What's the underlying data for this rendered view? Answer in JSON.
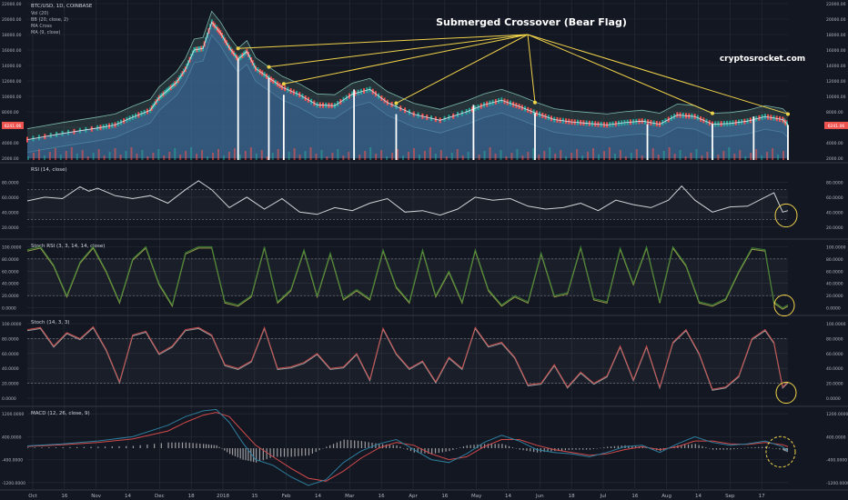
{
  "colors": {
    "background": "#131722",
    "grid": "#2a2e39",
    "separator": "#363a45",
    "price_area": "#3f6d99",
    "bull": "#26a69a",
    "bear": "#ef5350",
    "bb_band": "#7ab7a8",
    "annotation": "#f0d24a",
    "rsi_line": "#cfd2d6",
    "stoch_rsi_k": "#3d7f34",
    "stoch_rsi_d": "#9aa04a",
    "stoch_k": "#c14a4a",
    "stoch_d": "#9e9ea0",
    "macd_line": "#2d7f9e",
    "signal_line": "#d24a4a",
    "hist": "#9e9ea0",
    "price_badge": "#ef5350",
    "watermark": "#ffffff"
  },
  "annotation": {
    "title": "Submerged Crossover (Bear Flag)",
    "watermark": "cryptosrocket.com"
  },
  "chart_data": [
    {
      "type": "line",
      "title": "BTC/USD, 1D, COINBASE",
      "indicators": [
        "Vol (20)",
        "BB (20, close, 2)",
        "MA Cross",
        "MA (9, close)"
      ],
      "y_ticks": [
        "22000.00",
        "20000.00",
        "18000.00",
        "16000.00",
        "14000.00",
        "12000.00",
        "10000.00",
        "8000.00",
        "6000.00",
        "4000.00",
        "2000.00"
      ],
      "ylim": [
        2000,
        22000
      ],
      "last_price_label": "6241.06",
      "series": [
        {
          "x": [
            0,
            40,
            80,
            100,
            120,
            140,
            150,
            160,
            170,
            180,
            190,
            200,
            210,
            220,
            230,
            240,
            250,
            260,
            275,
            290,
            310,
            330,
            350,
            370,
            390,
            410,
            440,
            470,
            500,
            520,
            540,
            560,
            580,
            600,
            620,
            640,
            660,
            680,
            700,
            720,
            740,
            760,
            780,
            800,
            820,
            840,
            860,
            866
          ],
          "values": [
            4400,
            5200,
            5900,
            6300,
            7300,
            8200,
            9800,
            10800,
            11800,
            13500,
            16000,
            16200,
            19600,
            18200,
            16300,
            14800,
            15800,
            13600,
            12400,
            11200,
            10200,
            8900,
            8800,
            10300,
            10900,
            9200,
            7700,
            6900,
            8000,
            8900,
            9500,
            8700,
            7800,
            7000,
            6700,
            6500,
            6300,
            6600,
            6800,
            6400,
            7600,
            7400,
            6400,
            6500,
            6800,
            7400,
            7000,
            6300
          ]
        }
      ],
      "flag_markers_x": [
        240,
        275,
        292,
        372,
        420,
        508,
        578,
        706,
        780,
        827,
        866
      ],
      "arrow_targets_x": [
        240,
        275,
        292,
        420,
        578,
        780,
        866
      ]
    },
    {
      "type": "line",
      "title": "RSI (14, close)",
      "y_ticks": [
        "80.0000",
        "60.0000",
        "40.0000",
        "20.0000"
      ],
      "ylim": [
        10,
        100
      ],
      "bands": [
        70,
        30
      ],
      "series": [
        {
          "x": [
            0,
            20,
            40,
            60,
            70,
            80,
            100,
            120,
            140,
            160,
            180,
            195,
            210,
            230,
            250,
            270,
            290,
            310,
            330,
            350,
            370,
            390,
            410,
            430,
            450,
            470,
            490,
            510,
            530,
            550,
            570,
            590,
            610,
            630,
            650,
            670,
            690,
            710,
            730,
            745,
            760,
            780,
            800,
            820,
            840,
            850,
            860,
            866
          ],
          "values": [
            55,
            60,
            58,
            74,
            68,
            72,
            62,
            58,
            62,
            52,
            70,
            82,
            70,
            46,
            60,
            44,
            58,
            40,
            37,
            46,
            42,
            52,
            58,
            40,
            42,
            36,
            44,
            60,
            56,
            58,
            48,
            44,
            46,
            52,
            42,
            56,
            50,
            46,
            56,
            75,
            56,
            40,
            47,
            48,
            60,
            66,
            40,
            42
          ]
        }
      ]
    },
    {
      "type": "line",
      "title": "Stoch RSI (3, 3, 14, 14, close)",
      "y_ticks": [
        "100.0000",
        "80.0000",
        "60.0000",
        "40.0000",
        "20.0000",
        "0.0000"
      ],
      "ylim": [
        -5,
        105
      ],
      "bands": [
        80,
        20
      ],
      "series": [
        {
          "x": [
            0,
            15,
            30,
            45,
            60,
            75,
            90,
            105,
            120,
            135,
            150,
            165,
            180,
            195,
            210,
            225,
            240,
            255,
            270,
            285,
            300,
            315,
            330,
            345,
            360,
            375,
            390,
            405,
            420,
            435,
            450,
            465,
            480,
            495,
            510,
            525,
            540,
            555,
            570,
            585,
            600,
            615,
            630,
            645,
            660,
            675,
            690,
            705,
            720,
            735,
            750,
            765,
            780,
            795,
            810,
            825,
            840,
            850,
            860,
            866
          ],
          "values": [
            95,
            100,
            70,
            20,
            75,
            100,
            60,
            10,
            80,
            100,
            40,
            5,
            90,
            100,
            100,
            10,
            5,
            20,
            100,
            10,
            30,
            95,
            20,
            90,
            15,
            30,
            15,
            95,
            35,
            10,
            95,
            20,
            60,
            10,
            95,
            30,
            5,
            20,
            10,
            90,
            20,
            25,
            100,
            15,
            10,
            98,
            40,
            100,
            10,
            100,
            70,
            10,
            5,
            15,
            60,
            98,
            95,
            10,
            0,
            5
          ]
        }
      ]
    },
    {
      "type": "line",
      "title": "Stoch (14, 3, 3)",
      "y_ticks": [
        "100.0000",
        "80.0000",
        "60.0000",
        "40.0000",
        "20.0000",
        "0.0000"
      ],
      "ylim": [
        -5,
        105
      ],
      "bands": [
        80,
        20
      ],
      "series": [
        {
          "x": [
            0,
            15,
            30,
            45,
            60,
            75,
            90,
            105,
            120,
            135,
            150,
            165,
            180,
            195,
            210,
            225,
            240,
            255,
            270,
            285,
            300,
            315,
            330,
            345,
            360,
            375,
            390,
            405,
            420,
            435,
            450,
            465,
            480,
            495,
            510,
            525,
            540,
            555,
            570,
            585,
            600,
            615,
            630,
            645,
            660,
            675,
            690,
            705,
            720,
            735,
            750,
            765,
            780,
            795,
            810,
            825,
            840,
            850,
            860,
            866
          ],
          "values": [
            92,
            95,
            70,
            88,
            80,
            96,
            65,
            22,
            85,
            90,
            60,
            70,
            92,
            95,
            85,
            45,
            40,
            50,
            95,
            40,
            42,
            48,
            60,
            40,
            42,
            60,
            25,
            94,
            60,
            40,
            50,
            22,
            55,
            40,
            95,
            70,
            75,
            55,
            18,
            20,
            45,
            15,
            35,
            20,
            30,
            70,
            25,
            70,
            15,
            75,
            92,
            60,
            12,
            15,
            30,
            80,
            92,
            75,
            15,
            22
          ]
        }
      ]
    },
    {
      "type": "line",
      "title": "MACD (12, 26, close, 9)",
      "y_ticks": [
        "1200.0000",
        "400.0000",
        "-400.0000",
        "-1200.0000"
      ],
      "ylim": [
        -1300,
        1300
      ],
      "series": [
        {
          "x": [
            0,
            40,
            80,
            120,
            160,
            180,
            200,
            215,
            230,
            245,
            260,
            280,
            300,
            320,
            340,
            360,
            380,
            400,
            420,
            440,
            460,
            480,
            500,
            520,
            540,
            560,
            580,
            600,
            620,
            640,
            660,
            680,
            700,
            720,
            740,
            760,
            780,
            800,
            820,
            840,
            860,
            866
          ],
          "values": [
            80,
            150,
            250,
            400,
            800,
            1100,
            1300,
            1350,
            900,
            200,
            -400,
            -600,
            -1000,
            -1300,
            -1100,
            -500,
            -100,
            150,
            300,
            -50,
            -400,
            -500,
            -200,
            200,
            450,
            250,
            -50,
            -150,
            -200,
            -300,
            -150,
            50,
            100,
            -150,
            150,
            400,
            200,
            100,
            150,
            250,
            50,
            -100
          ]
        },
        {
          "x": [
            0,
            40,
            80,
            120,
            160,
            180,
            200,
            215,
            230,
            245,
            260,
            280,
            300,
            320,
            340,
            360,
            380,
            400,
            420,
            440,
            460,
            480,
            500,
            520,
            540,
            560,
            580,
            600,
            620,
            640,
            660,
            680,
            700,
            720,
            740,
            760,
            780,
            800,
            820,
            840,
            860,
            866
          ],
          "values": [
            60,
            120,
            200,
            320,
            600,
            900,
            1150,
            1250,
            1100,
            600,
            100,
            -300,
            -700,
            -1050,
            -1150,
            -800,
            -350,
            0,
            200,
            100,
            -200,
            -400,
            -300,
            50,
            300,
            300,
            100,
            -50,
            -150,
            -250,
            -200,
            -50,
            50,
            -50,
            50,
            250,
            250,
            150,
            130,
            200,
            120,
            50
          ]
        }
      ]
    }
  ],
  "x_axis_labels": [
    "Oct",
    "16",
    "Nov",
    "14",
    "Dec",
    "18",
    "2018",
    "15",
    "Feb",
    "14",
    "Mar",
    "16",
    "Apr",
    "16",
    "May",
    "14",
    "Jun",
    "18",
    "Jul",
    "16",
    "Aug",
    "14",
    "Sep",
    "17"
  ]
}
